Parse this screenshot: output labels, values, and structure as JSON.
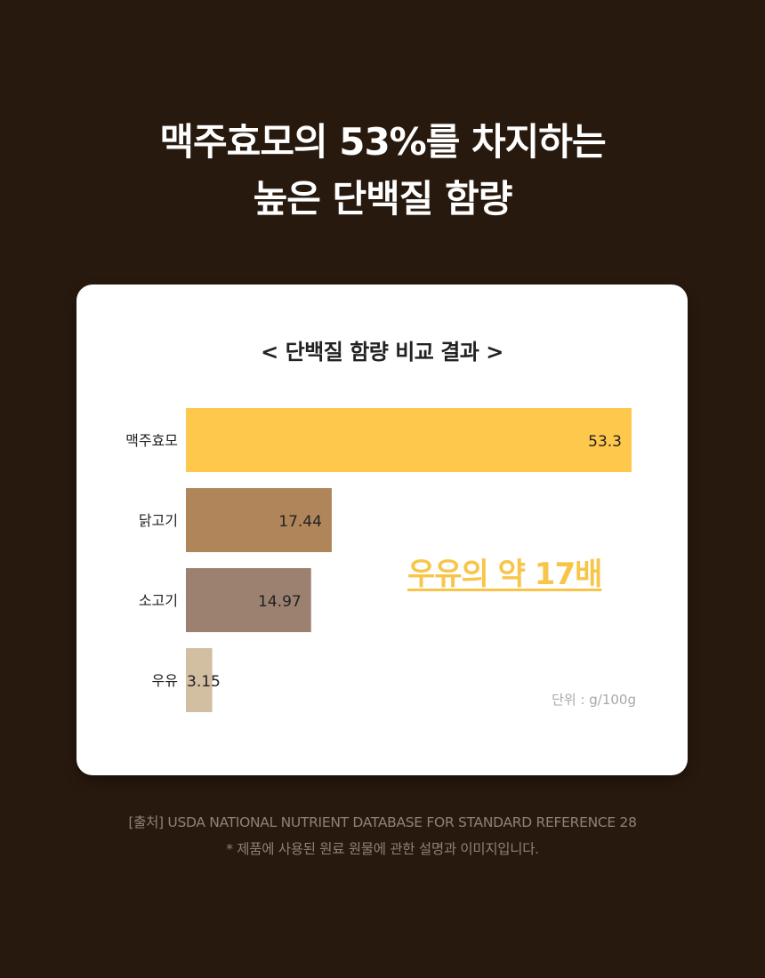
{
  "headline": {
    "line1": "맥주효모의 53%를 차지하는",
    "line2": "높은 단백질 함량"
  },
  "chart_data": {
    "type": "bar",
    "orientation": "horizontal",
    "title": "< 단백질 함량 비교 결과 >",
    "categories": [
      "맥주효모",
      "닭고기",
      "소고기",
      "우유"
    ],
    "values": [
      53.3,
      17.44,
      14.97,
      3.15
    ],
    "value_labels": [
      "53.3",
      "17.44",
      "14.97",
      "3.15"
    ],
    "colors": [
      "#fec84c",
      "#b0855a",
      "#9c8070",
      "#d2bea0"
    ],
    "xlim": [
      0,
      53.3
    ],
    "grid": false,
    "unit": "단위 : g/100g",
    "annotation": "우유의 약 17배"
  },
  "footer": {
    "source": "[출처] USDA NATIONAL NUTRIENT DATABASE FOR STANDARD REFERENCE 28",
    "note": "* 제품에 사용된 원료 원물에 관한 설명과 이미지입니다."
  }
}
